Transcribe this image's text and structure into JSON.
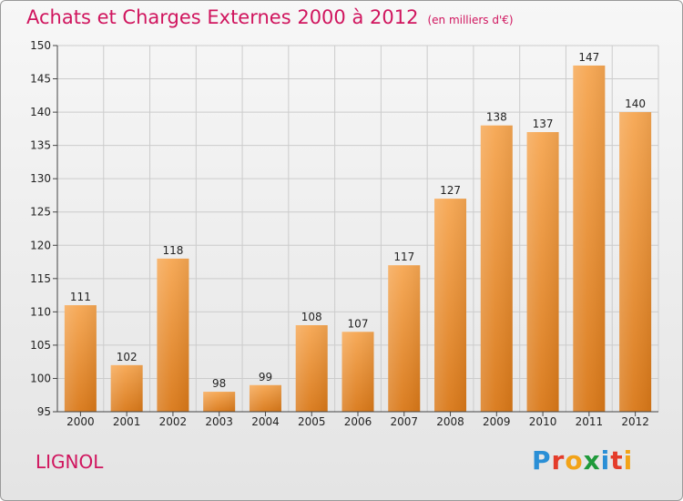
{
  "title": "Achats et Charges Externes 2000 à 2012",
  "subtitle": "(en milliers d'€)",
  "location": "LIGNOL",
  "logo": "Proxiti",
  "colors": {
    "title": "#d0155e",
    "bar_top": "#f6a651",
    "bar_bottom": "#d97818",
    "grid": "#cccccc"
  },
  "chart_data": {
    "type": "bar",
    "categories": [
      "2000",
      "2001",
      "2002",
      "2003",
      "2004",
      "2005",
      "2006",
      "2007",
      "2008",
      "2009",
      "2010",
      "2011",
      "2012"
    ],
    "values": [
      111,
      102,
      118,
      98,
      99,
      108,
      107,
      117,
      127,
      138,
      137,
      147,
      140
    ],
    "ylim": [
      95,
      150
    ],
    "yticks": [
      95,
      100,
      105,
      110,
      115,
      120,
      125,
      130,
      135,
      140,
      145,
      150
    ],
    "grid": true,
    "xlabel": "",
    "ylabel": ""
  }
}
